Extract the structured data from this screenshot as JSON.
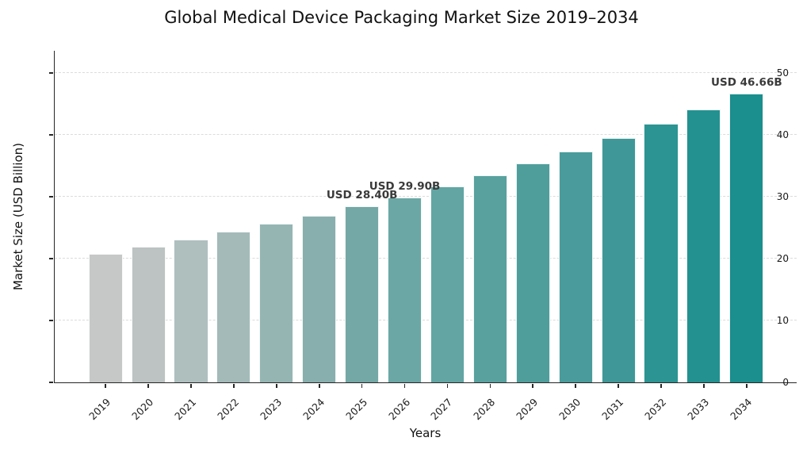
{
  "title": "Global Medical Device Packaging Market Size 2019–2034",
  "chart_data": {
    "type": "bar",
    "title": "Global Medical Device Packaging Market Size 2019–2034",
    "xlabel": "Years",
    "ylabel": "Market Size (USD Billion)",
    "categories": [
      "2019",
      "2020",
      "2021",
      "2022",
      "2023",
      "2024",
      "2025",
      "2026",
      "2027",
      "2028",
      "2029",
      "2030",
      "2031",
      "2032",
      "2033",
      "2034"
    ],
    "values": [
      20.8,
      21.91,
      23.07,
      24.3,
      25.59,
      26.95,
      28.4,
      29.9,
      31.61,
      33.42,
      35.33,
      37.35,
      39.48,
      41.74,
      44.13,
      46.66
    ],
    "bar_colors": [
      "#c6c7c7",
      "#bcc3c2",
      "#aebfbe",
      "#a3bab9",
      "#95b5b3",
      "#88afad",
      "#74a8a6",
      "#6ba7a5",
      "#62a5a3",
      "#58a19f",
      "#4f9e9c",
      "#499c9b",
      "#3f9897",
      "#2c9492",
      "#239190",
      "#1a8f8d"
    ],
    "ylim": [
      0,
      53.7
    ],
    "yticks": [
      0,
      10,
      20,
      30,
      40,
      50
    ],
    "grid": "horizontal-dashed",
    "legend": "none",
    "annotations": [
      {
        "category": "2025",
        "text": "USD 28.40B"
      },
      {
        "category": "2026",
        "text": "USD 29.90B"
      },
      {
        "category": "2034",
        "text": "USD 46.66B"
      }
    ],
    "colors": {
      "grid": "#dcdcdc",
      "spine": "#262626",
      "tick_label": "#1a1a1a",
      "annotation": "#3a3a3a",
      "background": "#ffffff"
    }
  }
}
